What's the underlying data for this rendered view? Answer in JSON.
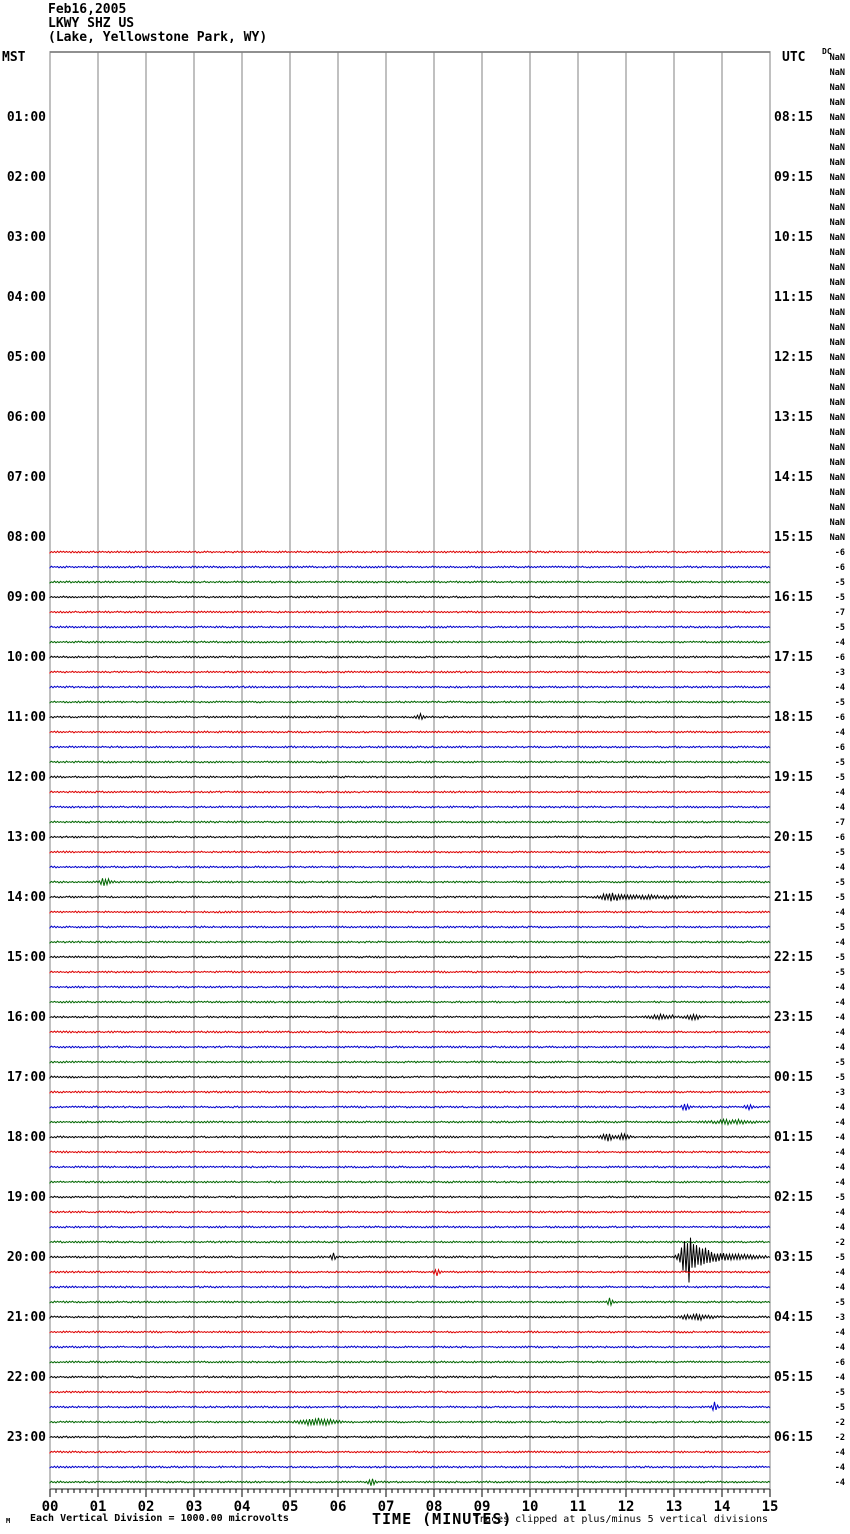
{
  "header": {
    "date": "Feb16,2005",
    "station": "LKWY SHZ US",
    "location": "(Lake, Yellowstone Park, WY)",
    "left_axis_header": "MST",
    "right_axis_header": "UTC",
    "dc_header": "DC"
  },
  "footer": {
    "corner_mark": "M",
    "division_note": "Each Vertical Division = 1000.00 microvolts",
    "time_axis_label": "TIME (MINUTES)",
    "clip_note": "Traces clipped at plus/minus 5 vertical divisions"
  },
  "colors": {
    "trace_black": "#000000",
    "trace_red": "#dd0000",
    "trace_blue": "#0000cc",
    "trace_green": "#006600",
    "grid": "#808080",
    "border": "#202020",
    "text": "#000000"
  },
  "chart_data": {
    "type": "heliplot-seismogram",
    "title": "Feb16,2005 LKWY SHZ US (Lake, Yellowstone Park, WY)",
    "xlabel": "TIME (MINUTES)",
    "x_ticks": [
      "00",
      "01",
      "02",
      "03",
      "04",
      "05",
      "06",
      "07",
      "08",
      "09",
      "10",
      "11",
      "12",
      "13",
      "14",
      "15"
    ],
    "minutes_per_line": 15,
    "rows_total": 96,
    "first_data_row": 33,
    "row_start_time_mst": "00:00",
    "color_cycle": [
      "black",
      "red",
      "blue",
      "green"
    ],
    "mst_hour_labels": [
      "01:00",
      "02:00",
      "03:00",
      "04:00",
      "05:00",
      "06:00",
      "07:00",
      "08:00",
      "09:00",
      "10:00",
      "11:00",
      "12:00",
      "13:00",
      "14:00",
      "15:00",
      "16:00",
      "17:00",
      "18:00",
      "19:00",
      "20:00",
      "21:00",
      "22:00",
      "23:00"
    ],
    "utc_hour_labels": [
      "08:15",
      "09:15",
      "10:15",
      "11:15",
      "12:15",
      "13:15",
      "14:15",
      "15:15",
      "16:15",
      "17:15",
      "18:15",
      "19:15",
      "20:15",
      "21:15",
      "22:15",
      "23:15",
      "00:15",
      "01:15",
      "02:15",
      "03:15",
      "04:15",
      "05:15",
      "06:15"
    ],
    "dc_column": {
      "nan_text": "NaN",
      "nan_rows": 33,
      "values": [
        -6,
        -6,
        -5,
        -5,
        -7,
        -5,
        -4,
        -6,
        -3,
        -4,
        -5,
        -6,
        -4,
        -6,
        -5,
        -5,
        -4,
        -4,
        -7,
        -6,
        -5,
        -4,
        -5,
        -5,
        -4,
        -5,
        -4,
        -5,
        -5,
        -4,
        -4,
        -4,
        -4,
        -4,
        -5,
        -5,
        -3,
        -4,
        -4,
        -4,
        -4,
        -4,
        -4,
        -5,
        -4,
        -4,
        -2,
        -5,
        -4,
        -4,
        -5,
        -3,
        -4,
        -4,
        -6,
        -4,
        -5,
        -5,
        -2,
        -2,
        -4,
        -4,
        -4
      ]
    },
    "events": [
      {
        "time_mst": "11:00",
        "row": 44,
        "minute": 7.7,
        "amp": 2.5,
        "width": 0.06
      },
      {
        "time_mst": "13:45",
        "row": 55,
        "minute": 1.15,
        "amp": 4,
        "width": 0.08
      },
      {
        "time_mst": "14:00",
        "row": 56,
        "minute": 11.7,
        "amp": 3.5,
        "width": 0.18
      },
      {
        "time_mst": "14:00",
        "row": 56,
        "minute": 12.4,
        "amp": 1.6,
        "width": 0.5
      },
      {
        "time_mst": "16:00",
        "row": 64,
        "minute": 12.75,
        "amp": 2.6,
        "width": 0.18
      },
      {
        "time_mst": "16:00",
        "row": 64,
        "minute": 13.4,
        "amp": 2.4,
        "width": 0.12
      },
      {
        "time_mst": "17:30",
        "row": 70,
        "minute": 13.25,
        "amp": 4,
        "width": 0.05
      },
      {
        "time_mst": "17:30",
        "row": 70,
        "minute": 14.55,
        "amp": 2.5,
        "width": 0.06
      },
      {
        "time_mst": "17:45",
        "row": 71,
        "minute": 14.2,
        "amp": 2.2,
        "width": 0.3
      },
      {
        "time_mst": "18:00",
        "row": 72,
        "minute": 11.62,
        "amp": 4,
        "width": 0.08
      },
      {
        "time_mst": "18:00",
        "row": 72,
        "minute": 11.95,
        "amp": 3.5,
        "width": 0.08
      },
      {
        "time_mst": "20:00",
        "row": 80,
        "minute": 5.9,
        "amp": 5,
        "width": 0.03
      },
      {
        "time_mst": "20:00",
        "row": 80,
        "minute": 13.28,
        "amp": 24,
        "width": 0.09
      },
      {
        "time_mst": "20:00",
        "row": 80,
        "minute": 13.5,
        "amp": 9,
        "width": 0.18
      },
      {
        "time_mst": "20:00",
        "row": 80,
        "minute": 13.85,
        "amp": 3.5,
        "width": 0.3
      },
      {
        "time_mst": "20:00",
        "row": 80,
        "minute": 14.4,
        "amp": 1.8,
        "width": 0.4
      },
      {
        "time_mst": "20:15",
        "row": 81,
        "minute": 8.05,
        "amp": 4,
        "width": 0.05
      },
      {
        "time_mst": "20:45",
        "row": 83,
        "minute": 11.66,
        "amp": 5,
        "width": 0.035
      },
      {
        "time_mst": "21:00",
        "row": 84,
        "minute": 13.45,
        "amp": 3,
        "width": 0.22
      },
      {
        "time_mst": "22:30",
        "row": 90,
        "minute": 13.85,
        "amp": 6,
        "width": 0.035
      },
      {
        "time_mst": "22:45",
        "row": 91,
        "minute": 5.6,
        "amp": 3.5,
        "width": 0.25
      },
      {
        "time_mst": "23:45",
        "row": 95,
        "minute": 6.7,
        "amp": 3,
        "width": 0.06
      }
    ]
  }
}
